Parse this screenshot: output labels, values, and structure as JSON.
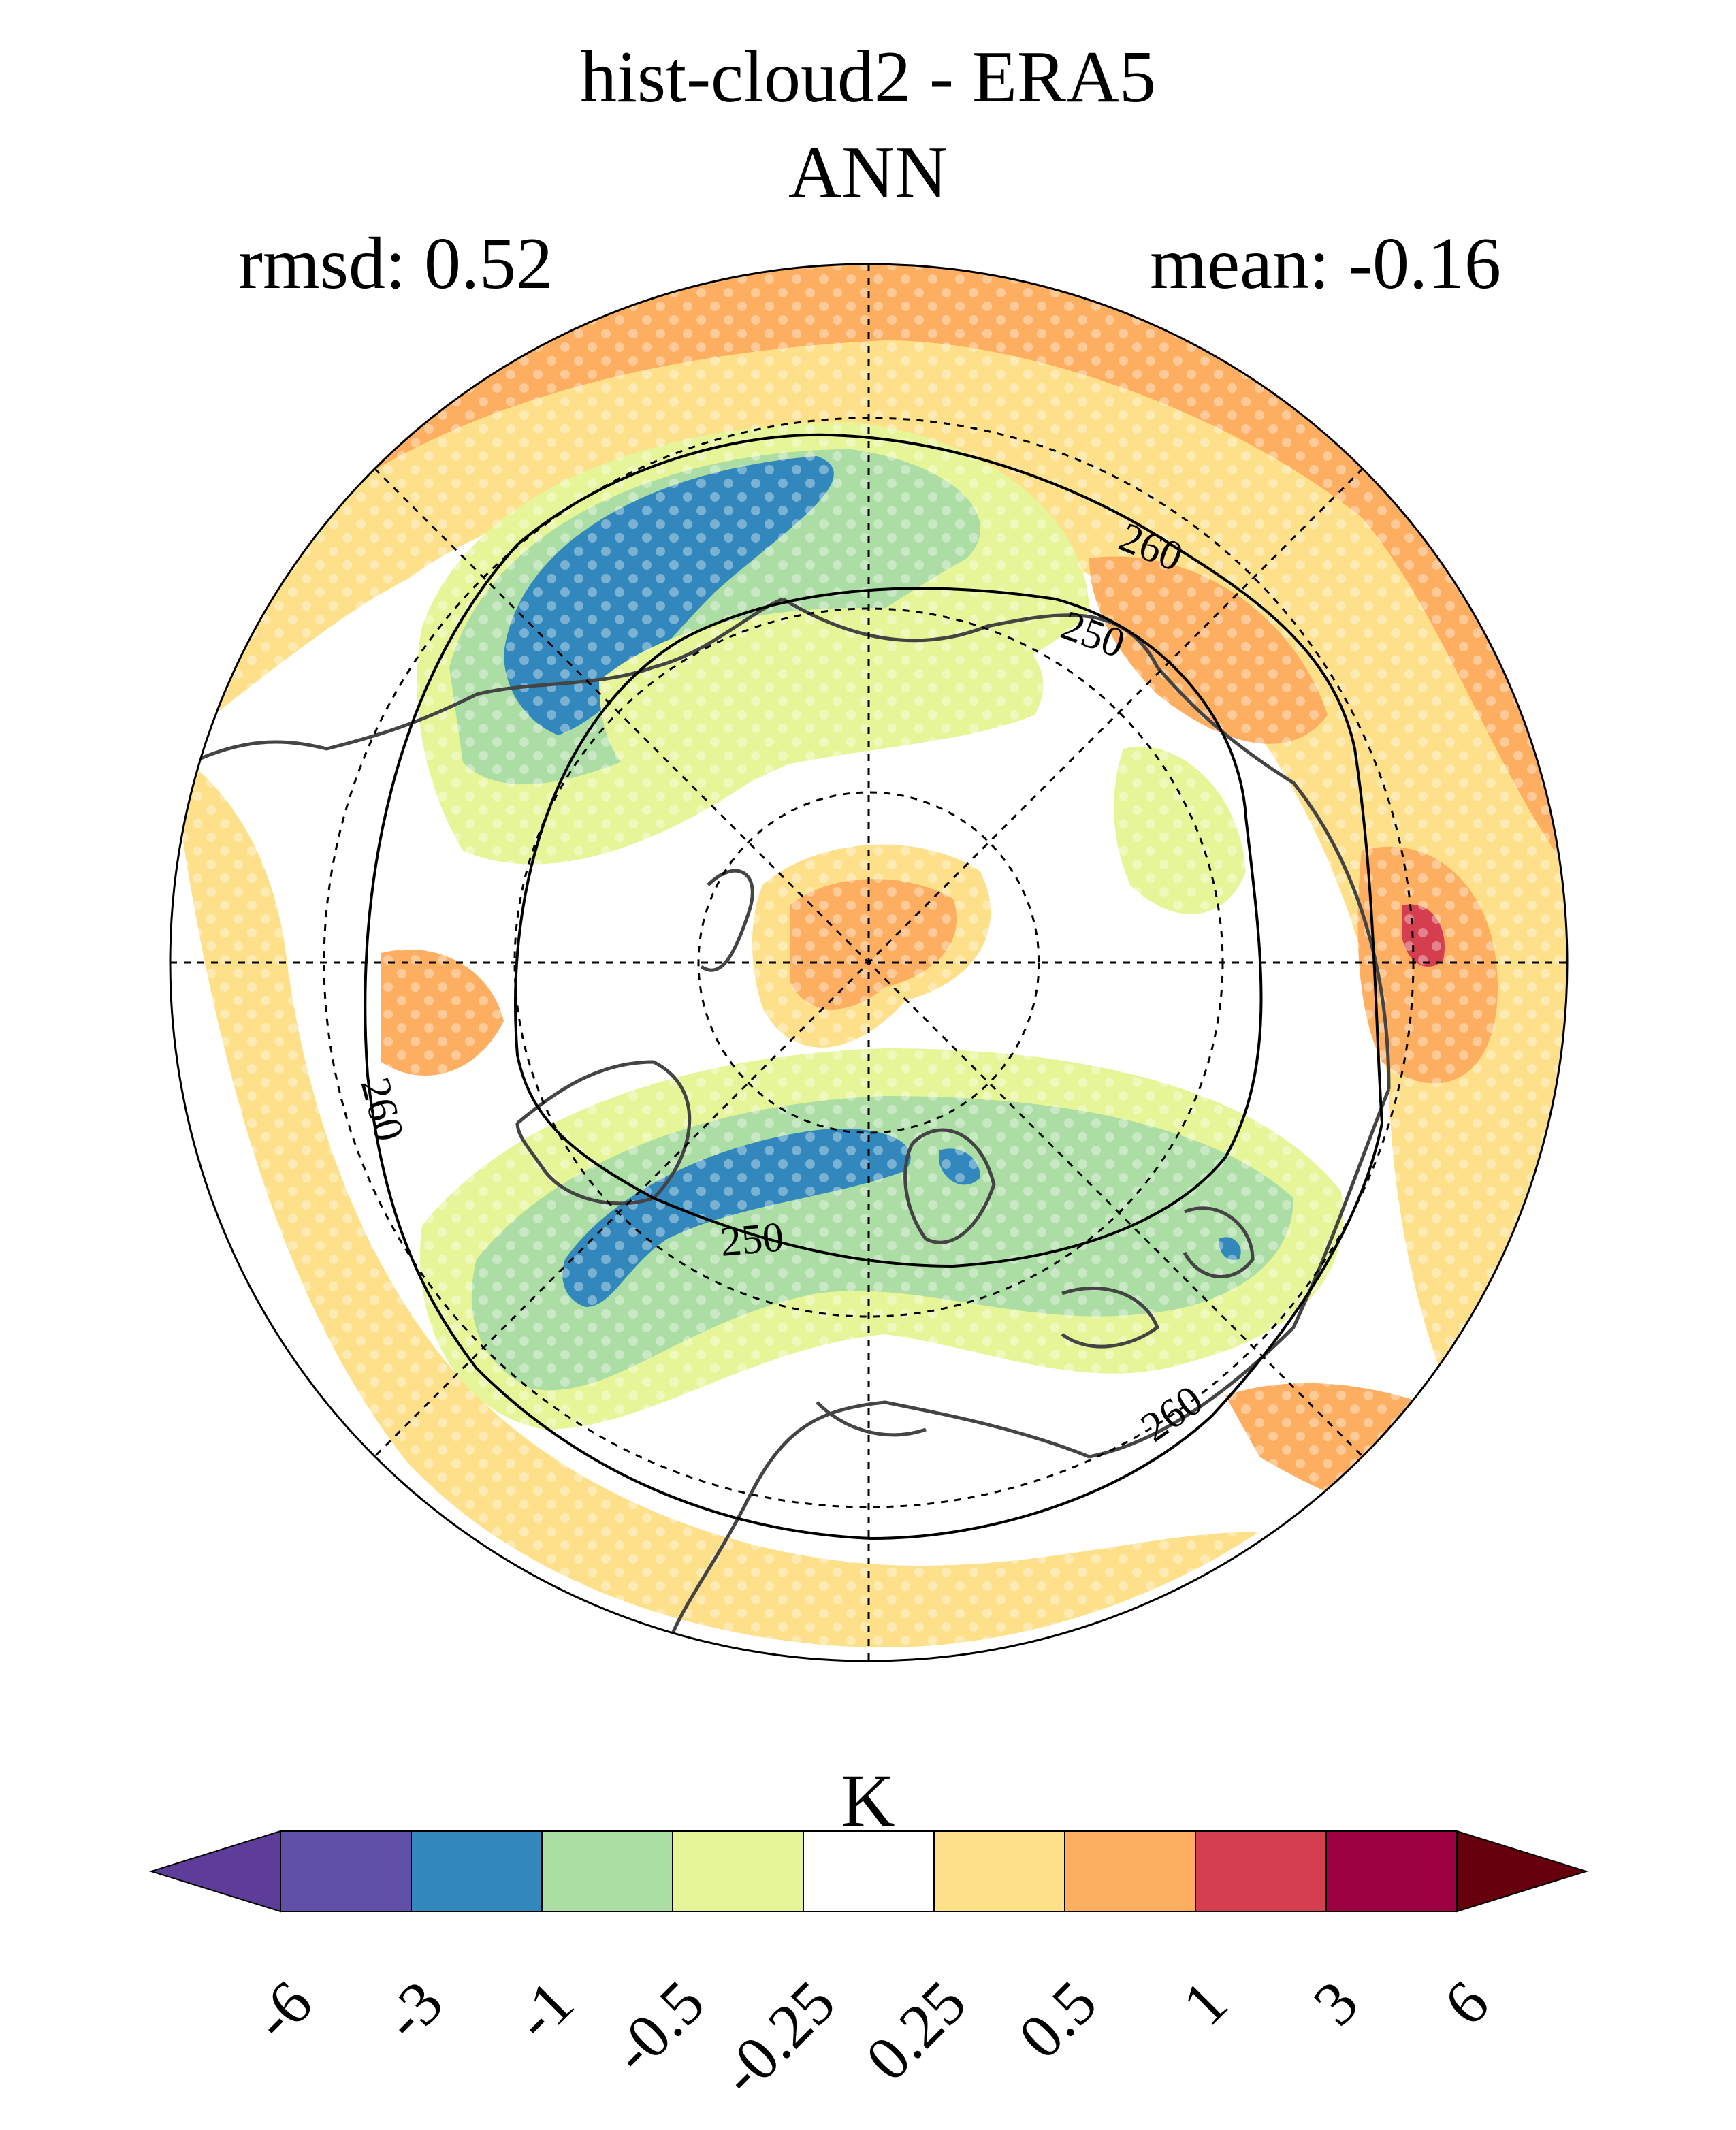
{
  "title": {
    "line1": "hist-cloud2 - ERA5",
    "line2": "ANN",
    "rmsd": "rmsd: 0.52",
    "mean": "mean: -0.16"
  },
  "map": {
    "projection": "north-polar-stereographic",
    "field": "temperature difference",
    "contour_labels": [
      "250",
      "250",
      "260",
      "260",
      "260",
      "250"
    ],
    "stippling": "white dots mark significant areas",
    "colors": {
      "land_outline": "#444444",
      "contour": "#000000",
      "grid": "#000000"
    }
  },
  "colorbar": {
    "unit": "K",
    "ticks": [
      "-6",
      "-3",
      "-1",
      "-0.5",
      "-0.25",
      "0.25",
      "0.5",
      "1",
      "3",
      "6"
    ],
    "colors": [
      "#5e3c99",
      "#6050a8",
      "#3288bd",
      "#abdda4",
      "#e6f598",
      "#ffffff",
      "#fee08b",
      "#fdae61",
      "#d53e4f",
      "#9e0142",
      "#67000d"
    ],
    "extend": "both"
  }
}
